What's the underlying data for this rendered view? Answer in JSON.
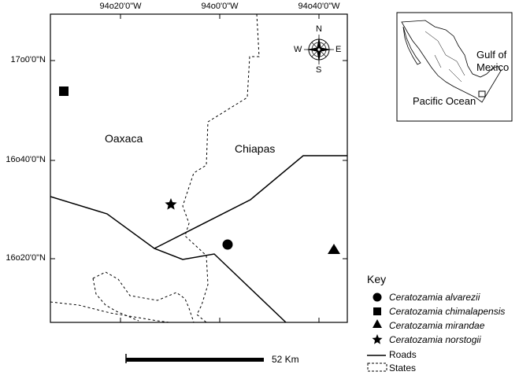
{
  "map": {
    "lon_ticks": [
      "94o20'0\"W",
      "94o0'0\"W",
      "94o40'0\"W"
    ],
    "lat_ticks": [
      "17o0'0\"N",
      "16o40'0\"N",
      "16o20'0\"N"
    ],
    "regions": {
      "oaxaca": "Oaxaca",
      "chiapas": "Chiapas"
    },
    "compass": {
      "n": "N",
      "s": "S",
      "e": "E",
      "w": "W"
    }
  },
  "inset": {
    "gulf": [
      "Gulf of",
      "Mexico"
    ],
    "pacific": "Pacific Ocean"
  },
  "key": {
    "title": "Key",
    "items": [
      {
        "symbol": "circle-icon",
        "label": "Ceratozamia alvarezii"
      },
      {
        "symbol": "square-icon",
        "label": "Ceratozamia chimalapensis"
      },
      {
        "symbol": "triangle-icon",
        "label": "Ceratozamia mirandae"
      },
      {
        "symbol": "star-icon",
        "label": "Ceratozamia norstogii"
      },
      {
        "symbol": "solid-line-icon",
        "label": "Roads"
      },
      {
        "symbol": "dashed-box-icon",
        "label": "States"
      }
    ]
  },
  "scale": {
    "label": "52 Km"
  }
}
